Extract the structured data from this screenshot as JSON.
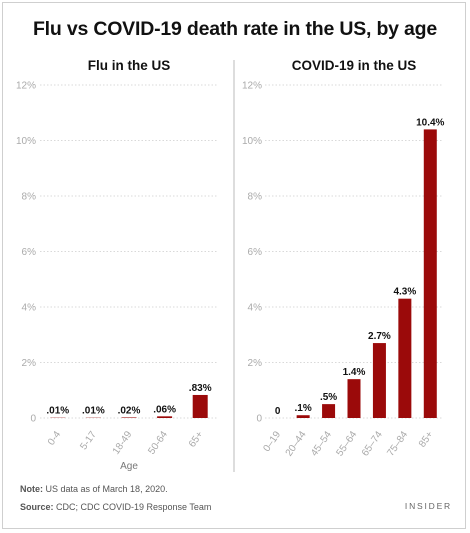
{
  "title": "Flu vs COVID-19 death rate in the US, by age",
  "note": {
    "label": "Note:",
    "text": "US data as of March 18, 2020."
  },
  "source": {
    "label": "Source:",
    "text": "CDC; CDC COVID-19 Response Team"
  },
  "brand": "INSIDER",
  "colors": {
    "bar": "#9b0a0a",
    "grid": "#d9d9d9",
    "tick": "#aaaaaa",
    "divider": "#bbbbbb"
  },
  "chart_data": [
    {
      "type": "bar",
      "title": "Flu in the US",
      "xlabel": "Age",
      "ylabel": "",
      "ylim": [
        0,
        12
      ],
      "y_ticks": [
        "0",
        "2%",
        "4%",
        "6%",
        "8%",
        "10%",
        "12%"
      ],
      "categories": [
        "0-4",
        "5-17",
        "18-49",
        "50-64",
        "65+"
      ],
      "values": [
        0.01,
        0.01,
        0.02,
        0.06,
        0.83
      ],
      "data_labels": [
        ".01%",
        ".01%",
        ".02%",
        ".06%",
        ".83%"
      ],
      "grid": true
    },
    {
      "type": "bar",
      "title": "COVID-19 in the US",
      "xlabel": "",
      "ylabel": "",
      "ylim": [
        0,
        12
      ],
      "y_ticks": [
        "0",
        "2%",
        "4%",
        "6%",
        "8%",
        "10%",
        "12%"
      ],
      "categories": [
        "0–19",
        "20–44",
        "45–54",
        "55–64",
        "65–74",
        "75–84",
        "85+"
      ],
      "values": [
        0,
        0.1,
        0.5,
        1.4,
        2.7,
        4.3,
        10.4
      ],
      "data_labels": [
        "0",
        ".1%",
        ".5%",
        "1.4%",
        "2.7%",
        "4.3%",
        "10.4%"
      ],
      "grid": true
    }
  ]
}
